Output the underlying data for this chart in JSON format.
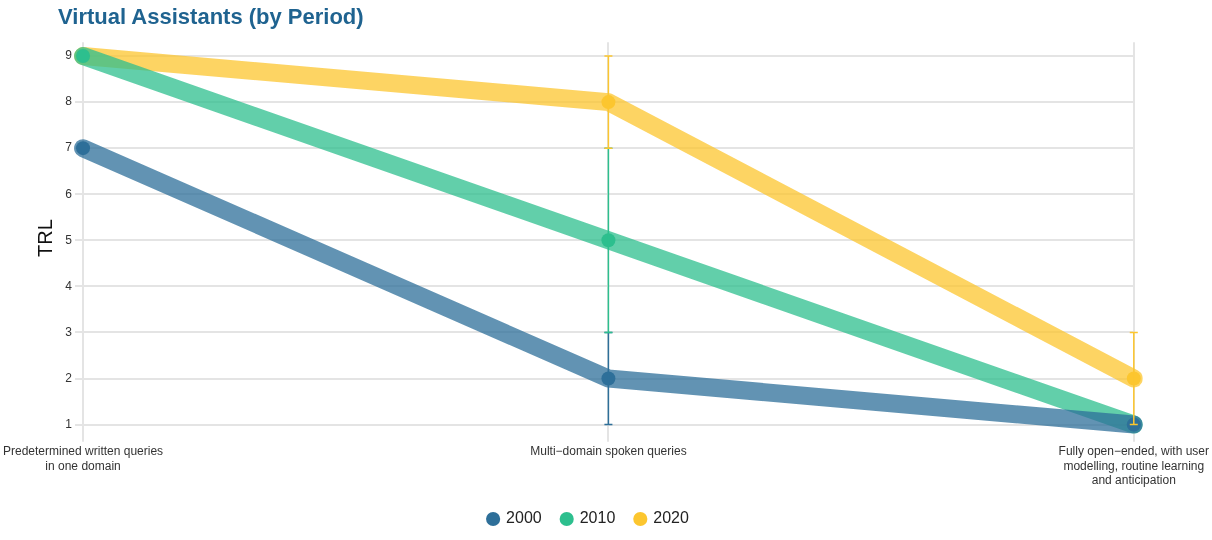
{
  "chart_data": {
    "type": "line",
    "title": "Virtual Assistants (by Period)",
    "ylabel": "TRL",
    "categories": [
      "Predetermined written queries in one domain",
      "Multi−domain spoken queries",
      "Fully open−ended, with user modelling, routine learning and anticipation"
    ],
    "series": [
      {
        "name": "2000",
        "color": "#2e6f99",
        "values": [
          7,
          2,
          1
        ],
        "errors": [
          null,
          [
            1,
            3
          ],
          null
        ]
      },
      {
        "name": "2010",
        "color": "#2dbf8e",
        "values": [
          9,
          5,
          1
        ],
        "errors": [
          null,
          [
            3,
            7
          ],
          null
        ]
      },
      {
        "name": "2020",
        "color": "#fcc62f",
        "values": [
          9,
          8,
          2
        ],
        "errors": [
          null,
          [
            7,
            9
          ],
          [
            1,
            3
          ]
        ]
      }
    ],
    "ylim": [
      0.8,
      9.3
    ],
    "yticks": [
      1,
      2,
      3,
      4,
      5,
      6,
      7,
      8,
      9
    ],
    "grid": true,
    "legend": "bottom",
    "marker": "circle",
    "line_style": "solid"
  }
}
